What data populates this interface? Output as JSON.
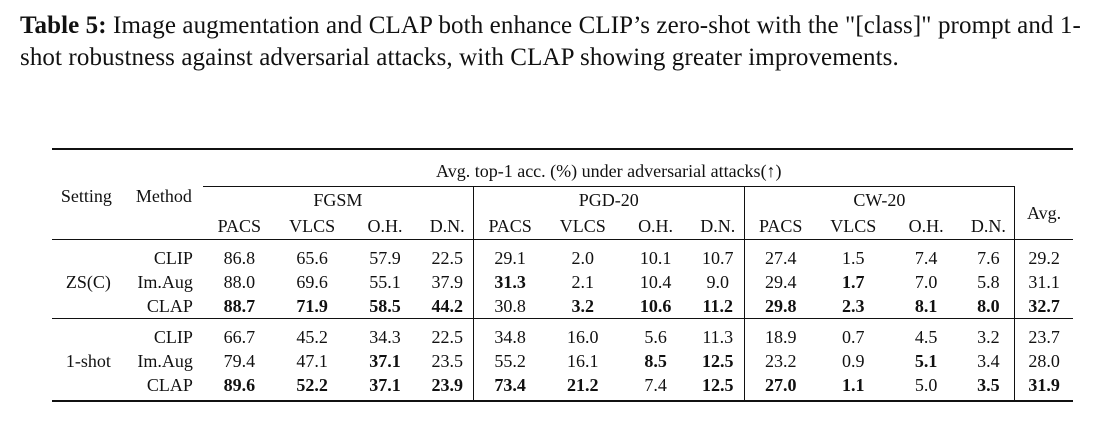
{
  "caption": {
    "label": "Table 5:",
    "text": " Image augmentation and CLAP both enhance CLIP’s zero-shot with the \"[class]\" prompt and 1-shot robustness against adversarial attacks, with CLAP showing greater improvements."
  },
  "table": {
    "col_setting": "Setting",
    "col_method": "Method",
    "super_header": "Avg. top-1 acc. (%) under adversarial attacks(↑)",
    "groups": [
      "FGSM",
      "PGD-20",
      "CW-20"
    ],
    "datasets": [
      "PACS",
      "VLCS",
      "O.H.",
      "D.N."
    ],
    "avg_header": "Avg.",
    "blocks": [
      {
        "setting": "ZS(C)",
        "rows": [
          {
            "method": "CLIP",
            "values": [
              "86.8",
              "65.6",
              "57.9",
              "22.5",
              "29.1",
              "2.0",
              "10.1",
              "10.7",
              "27.4",
              "1.5",
              "7.4",
              "7.6",
              "29.2"
            ],
            "bold": []
          },
          {
            "method": "Im.Aug",
            "values": [
              "88.0",
              "69.6",
              "55.1",
              "37.9",
              "31.3",
              "2.1",
              "10.4",
              "9.0",
              "29.4",
              "1.7",
              "7.0",
              "5.8",
              "31.1"
            ],
            "bold": [
              4,
              9
            ]
          },
          {
            "method": "CLAP",
            "values": [
              "88.7",
              "71.9",
              "58.5",
              "44.2",
              "30.8",
              "3.2",
              "10.6",
              "11.2",
              "29.8",
              "2.3",
              "8.1",
              "8.0",
              "32.7"
            ],
            "bold": [
              0,
              1,
              2,
              3,
              5,
              6,
              7,
              8,
              9,
              10,
              11,
              12
            ]
          }
        ]
      },
      {
        "setting": "1-shot",
        "rows": [
          {
            "method": "CLIP",
            "values": [
              "66.7",
              "45.2",
              "34.3",
              "22.5",
              "34.8",
              "16.0",
              "5.6",
              "11.3",
              "18.9",
              "0.7",
              "4.5",
              "3.2",
              "23.7"
            ],
            "bold": []
          },
          {
            "method": "Im.Aug",
            "values": [
              "79.4",
              "47.1",
              "37.1",
              "23.5",
              "55.2",
              "16.1",
              "8.5",
              "12.5",
              "23.2",
              "0.9",
              "5.1",
              "3.4",
              "28.0"
            ],
            "bold": [
              2,
              6,
              7,
              10
            ]
          },
          {
            "method": "CLAP",
            "values": [
              "89.6",
              "52.2",
              "37.1",
              "23.9",
              "73.4",
              "21.2",
              "7.4",
              "12.5",
              "27.0",
              "1.1",
              "5.0",
              "3.5",
              "31.9"
            ],
            "bold": [
              0,
              1,
              2,
              3,
              4,
              5,
              7,
              8,
              9,
              11,
              12
            ]
          }
        ]
      }
    ]
  }
}
